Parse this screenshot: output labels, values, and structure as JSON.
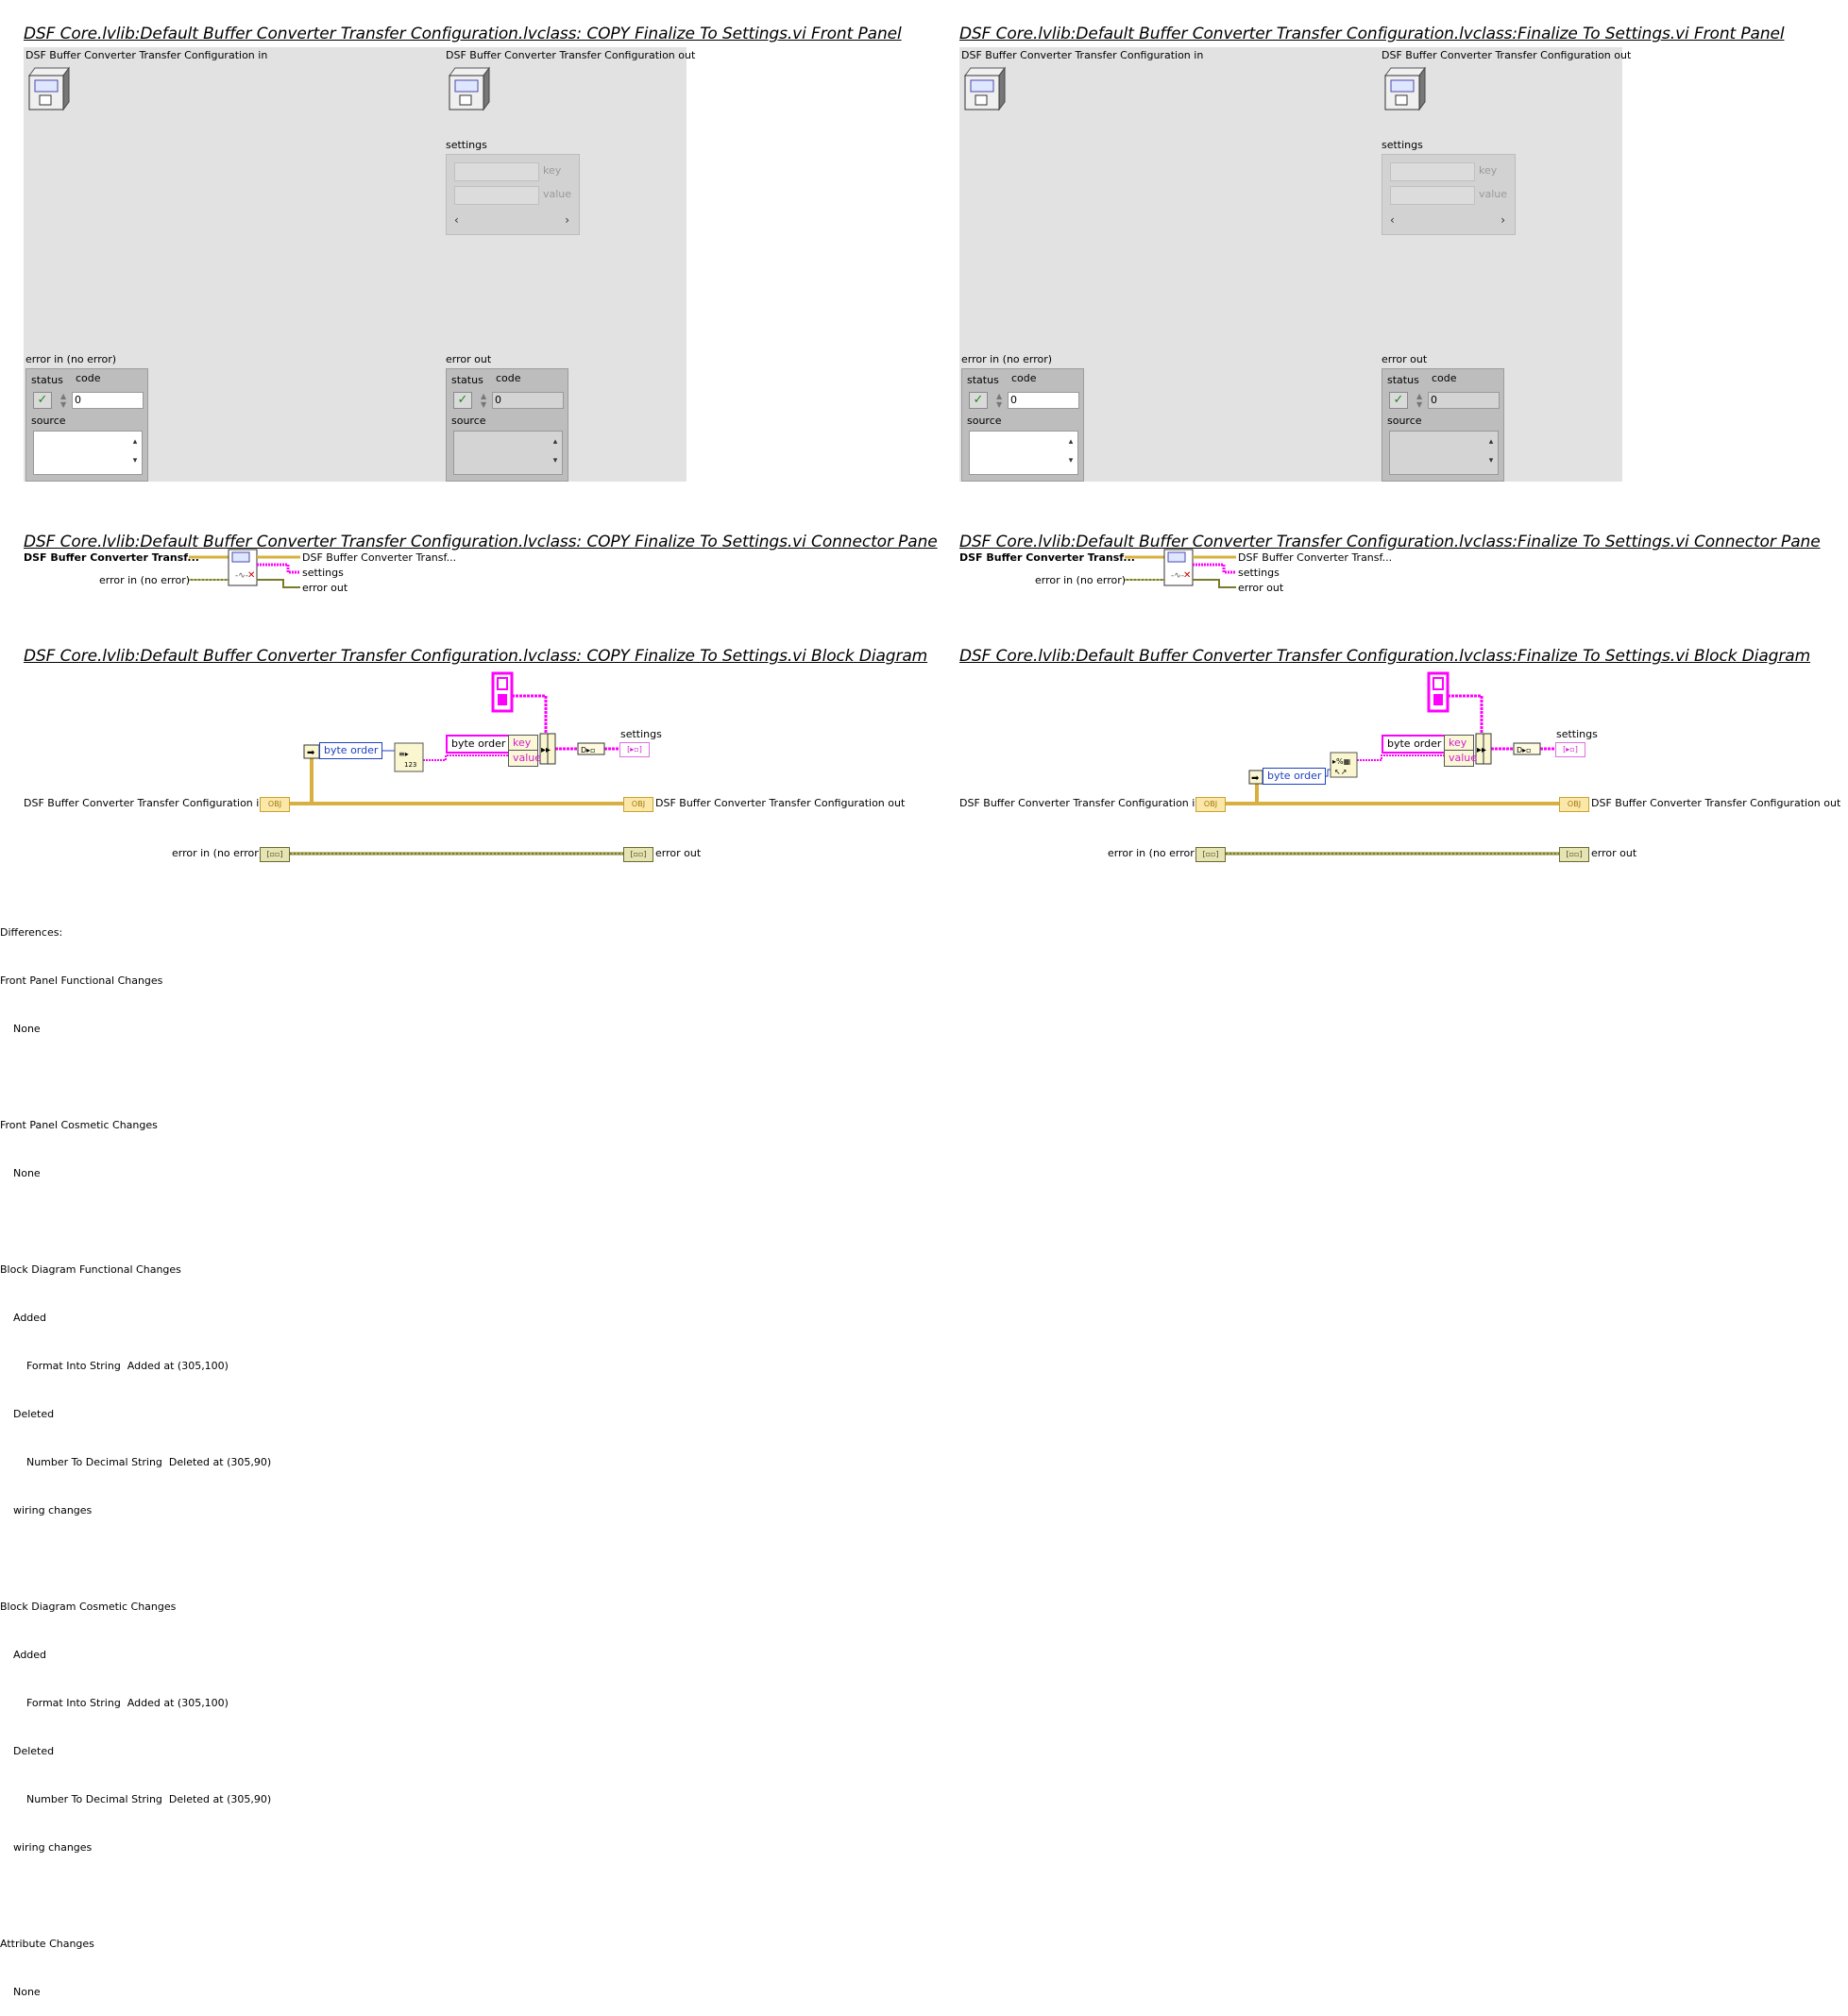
{
  "left": {
    "fp_title": "DSF Core.lvlib:Default Buffer Converter Transfer Configuration.lvclass:  COPY  Finalize To Settings.vi Front Panel",
    "cp_title": "DSF Core.lvlib:Default Buffer Converter Transfer Configuration.lvclass:  COPY  Finalize To Settings.vi Connector Pane",
    "bd_title": "DSF Core.lvlib:Default Buffer Converter Transfer Configuration.lvclass:  COPY  Finalize To Settings.vi Block Diagram"
  },
  "right": {
    "fp_title": "DSF Core.lvlib:Default Buffer Converter Transfer Configuration.lvclass:Finalize To Settings.vi Front Panel",
    "cp_title": "DSF Core.lvlib:Default Buffer Converter Transfer Configuration.lvclass:Finalize To Settings.vi Connector Pane",
    "bd_title": "DSF Core.lvlib:Default Buffer Converter Transfer Configuration.lvclass:Finalize To Settings.vi Block Diagram"
  },
  "front_panel": {
    "config_in": "DSF Buffer Converter Transfer Configuration in",
    "config_out": "DSF Buffer Converter Transfer Configuration out",
    "settings": "settings",
    "key": "key",
    "value": "value",
    "error_in": "error in (no error)",
    "error_out": "error out",
    "status": "status",
    "code": "code",
    "code_value": "0",
    "source": "source"
  },
  "connector": {
    "in_short": "DSF Buffer Converter Transf...",
    "out_short": "DSF Buffer Converter Transf...",
    "error_in": "error in (no error)",
    "settings": "settings",
    "error_out": "error out"
  },
  "block_diagram": {
    "config_in": "DSF Buffer Converter Transfer Configuration in",
    "config_out": "DSF Buffer Converter Transfer Configuration out",
    "error_in": "error in (no error)",
    "error_out": "error out",
    "settings": "settings",
    "byte_order_1": "byte order",
    "byte_order_2": "byte order",
    "key": "key",
    "value": "value",
    "obj_term": "OBJ"
  },
  "differences": {
    "lines": [
      "Differences:",
      "Front Panel Functional Changes",
      "    None",
      "",
      "Front Panel Cosmetic Changes",
      "    None",
      "",
      "Block Diagram Functional Changes",
      "    Added",
      "        Format Into String  Added at (305,100)",
      "    Deleted",
      "        Number To Decimal String  Deleted at (305,90)",
      "    wiring changes",
      "",
      "Block Diagram Cosmetic Changes",
      "    Added",
      "        Format Into String  Added at (305,100)",
      "    Deleted",
      "        Number To Decimal String  Deleted at (305,90)",
      "    wiring changes",
      "",
      "Attribute Changes",
      "    None"
    ]
  },
  "colors": {
    "panel_bg": "#e2e2e2",
    "class_wire": "#d8b040",
    "error_wire": "#7a7a2a",
    "string_wire": "#ff00ff",
    "number_wire": "#2040c0"
  }
}
